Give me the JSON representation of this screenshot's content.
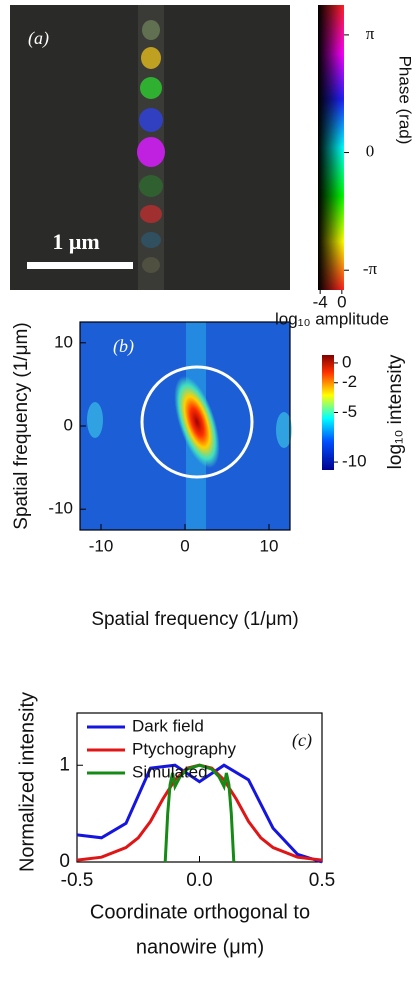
{
  "chart_data": [
    {
      "type": "image",
      "label": "(a)",
      "scale_bar": "1 μm",
      "colorbar": {
        "label": "Phase (rad)",
        "lim": [
          -3.67,
          3.94
        ],
        "ticks": [
          {
            "value": 3.1416,
            "label": "π"
          },
          0,
          {
            "value": -3.1416,
            "label": "-π"
          }
        ]
      },
      "amplitude_axis": {
        "label": "log₁₀ amplitude",
        "lim": [
          -4.4,
          0.4
        ],
        "ticks": [
          -4,
          0
        ]
      }
    },
    {
      "type": "heatmap",
      "label": "(b)",
      "xlabel": "Spatial frequency (1/μm)",
      "ylabel": "Spatial frequency (1/μm)",
      "xlim": [
        -12.5,
        12.5
      ],
      "ylim": [
        -12.5,
        12.5
      ],
      "xticks": [
        -10,
        0,
        10
      ],
      "yticks": [
        -10,
        0,
        10
      ],
      "colorbar": {
        "label": "log₁₀ intensity",
        "lim": [
          -10.8,
          0.8
        ],
        "ticks": [
          0,
          -2,
          -5,
          -10
        ]
      }
    },
    {
      "type": "line",
      "label": "(c)",
      "xlabel": [
        "Coordinate orthogonal to",
        "nanowire (μm)"
      ],
      "ylabel": "Normalized intensity",
      "xlim": [
        -0.5,
        0.5
      ],
      "ylim": [
        0,
        1.54
      ],
      "xticks": [
        -0.5,
        {
          "value": 0,
          "label": "0.0"
        },
        0.5
      ],
      "yticks": [
        0,
        1
      ],
      "series": [
        {
          "name": "Dark field",
          "color": "#1515e0",
          "x": [
            -0.5,
            -0.4,
            -0.3,
            -0.2,
            -0.1,
            0,
            0.1,
            0.2,
            0.3,
            0.4,
            0.5
          ],
          "values": [
            0.28,
            0.25,
            0.4,
            0.97,
            1.0,
            0.83,
            1.0,
            0.85,
            0.35,
            0.08,
            0.0
          ]
        },
        {
          "name": "Ptychography",
          "color": "#e01515",
          "x": [
            -0.5,
            -0.4,
            -0.3,
            -0.25,
            -0.2,
            -0.15,
            -0.1,
            -0.05,
            0,
            0.05,
            0.1,
            0.15,
            0.2,
            0.25,
            0.3,
            0.4,
            0.5
          ],
          "values": [
            0.02,
            0.05,
            0.15,
            0.25,
            0.42,
            0.65,
            0.85,
            0.97,
            1.0,
            0.97,
            0.85,
            0.65,
            0.42,
            0.25,
            0.15,
            0.05,
            0.02
          ]
        },
        {
          "name": "Simulated",
          "color": "#158a15",
          "x": [
            -0.14,
            -0.13,
            -0.12,
            -0.11,
            -0.1,
            -0.08,
            -0.05,
            0,
            0.05,
            0.08,
            0.1,
            0.11,
            0.12,
            0.13,
            0.14
          ],
          "values": [
            0.0,
            0.5,
            0.8,
            0.92,
            0.78,
            0.88,
            0.96,
            1.0,
            0.96,
            0.88,
            0.78,
            0.92,
            0.8,
            0.5,
            0.0
          ]
        }
      ]
    }
  ]
}
